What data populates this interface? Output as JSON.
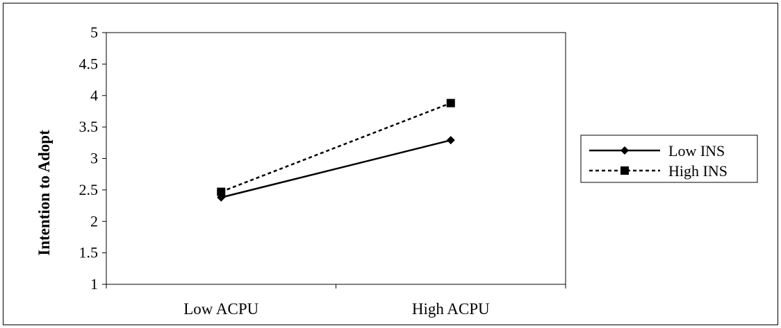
{
  "chart_data": {
    "type": "line",
    "categories": [
      "Low ACPU",
      "High ACPU"
    ],
    "series": [
      {
        "name": "Low INS",
        "values": [
          2.38,
          3.29
        ],
        "line_style": "solid",
        "marker": "diamond"
      },
      {
        "name": "High INS",
        "values": [
          2.47,
          3.88
        ],
        "line_style": "dashed",
        "marker": "square"
      }
    ],
    "title": "",
    "xlabel": "",
    "ylabel": "Intention to Adopt",
    "ylim": [
      1,
      5
    ],
    "yticks": [
      "1",
      "1.5",
      "2",
      "2.5",
      "3",
      "3.5",
      "4",
      "4.5",
      "5"
    ],
    "grid": false,
    "legend_position": "right",
    "colors": {
      "line": "#000000",
      "background": "#ffffff"
    }
  }
}
